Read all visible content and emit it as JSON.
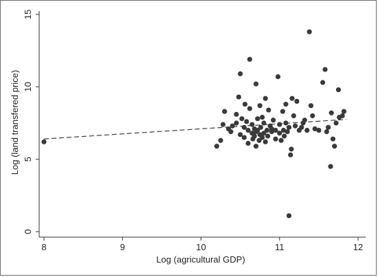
{
  "chart_data": {
    "type": "scatter",
    "title": "",
    "xlabel": "Log (agricultural GDP)",
    "ylabel": "Log (land transfered price)",
    "xlim": [
      8,
      12
    ],
    "ylim": [
      0,
      15
    ],
    "xticks": [
      "8",
      "9",
      "10",
      "11",
      "12"
    ],
    "yticks": [
      "0",
      "5",
      "10",
      "15"
    ],
    "grid": false,
    "legend": "none",
    "colors": {
      "points": "#3a3a3a",
      "fit_line": "#3a3a3a",
      "axes": "#333333"
    },
    "fit_line": {
      "style": "dashed",
      "x": [
        8.0,
        11.85
      ],
      "y": [
        6.4,
        7.75
      ]
    },
    "points": [
      [
        8.0,
        6.2
      ],
      [
        10.2,
        5.9
      ],
      [
        10.25,
        6.3
      ],
      [
        10.28,
        7.4
      ],
      [
        10.3,
        8.3
      ],
      [
        10.35,
        7.1
      ],
      [
        10.38,
        6.9
      ],
      [
        10.4,
        7.3
      ],
      [
        10.45,
        7.5
      ],
      [
        10.45,
        8.1
      ],
      [
        10.48,
        9.3
      ],
      [
        10.5,
        10.9
      ],
      [
        10.5,
        6.7
      ],
      [
        10.52,
        7.8
      ],
      [
        10.55,
        6.5
      ],
      [
        10.55,
        7.2
      ],
      [
        10.56,
        8.8
      ],
      [
        10.58,
        7.6
      ],
      [
        10.6,
        6.1
      ],
      [
        10.6,
        7.0
      ],
      [
        10.62,
        8.5
      ],
      [
        10.62,
        11.9
      ],
      [
        10.65,
        6.8
      ],
      [
        10.65,
        7.4
      ],
      [
        10.66,
        6.4
      ],
      [
        10.68,
        7.1
      ],
      [
        10.68,
        6.6
      ],
      [
        10.7,
        10.2
      ],
      [
        10.7,
        5.9
      ],
      [
        10.7,
        6.9
      ],
      [
        10.72,
        7.0
      ],
      [
        10.72,
        7.8
      ],
      [
        10.74,
        6.3
      ],
      [
        10.75,
        6.7
      ],
      [
        10.75,
        8.7
      ],
      [
        10.76,
        7.2
      ],
      [
        10.78,
        6.5
      ],
      [
        10.78,
        7.9
      ],
      [
        10.8,
        6.8
      ],
      [
        10.8,
        7.5
      ],
      [
        10.82,
        9.2
      ],
      [
        10.82,
        6.2
      ],
      [
        10.84,
        7.0
      ],
      [
        10.85,
        6.6
      ],
      [
        10.86,
        8.4
      ],
      [
        10.88,
        7.3
      ],
      [
        10.9,
        6.9
      ],
      [
        10.9,
        7.1
      ],
      [
        10.92,
        7.7
      ],
      [
        10.95,
        6.4
      ],
      [
        10.95,
        7.0
      ],
      [
        10.98,
        10.7
      ],
      [
        11.0,
        6.8
      ],
      [
        11.0,
        7.4
      ],
      [
        11.02,
        6.3
      ],
      [
        11.04,
        8.3
      ],
      [
        11.05,
        7.0
      ],
      [
        11.06,
        6.6
      ],
      [
        11.08,
        7.5
      ],
      [
        11.08,
        8.8
      ],
      [
        11.1,
        6.9
      ],
      [
        11.12,
        1.1
      ],
      [
        11.12,
        7.2
      ],
      [
        11.14,
        5.3
      ],
      [
        11.15,
        5.7
      ],
      [
        11.16,
        9.2
      ],
      [
        11.18,
        8.0
      ],
      [
        11.2,
        7.3
      ],
      [
        11.22,
        9.0
      ],
      [
        11.25,
        7.0
      ],
      [
        11.28,
        7.2
      ],
      [
        11.3,
        7.5
      ],
      [
        11.32,
        7.7
      ],
      [
        11.35,
        7.0
      ],
      [
        11.38,
        13.8
      ],
      [
        11.4,
        8.7
      ],
      [
        11.42,
        8.0
      ],
      [
        11.45,
        7.1
      ],
      [
        11.5,
        7.0
      ],
      [
        11.55,
        10.3
      ],
      [
        11.58,
        11.2
      ],
      [
        11.6,
        6.9
      ],
      [
        11.62,
        7.2
      ],
      [
        11.65,
        4.5
      ],
      [
        11.66,
        8.2
      ],
      [
        11.68,
        6.4
      ],
      [
        11.7,
        5.9
      ],
      [
        11.72,
        7.5
      ],
      [
        11.75,
        9.8
      ],
      [
        11.76,
        7.9
      ],
      [
        11.8,
        8.0
      ],
      [
        11.82,
        8.3
      ]
    ]
  }
}
